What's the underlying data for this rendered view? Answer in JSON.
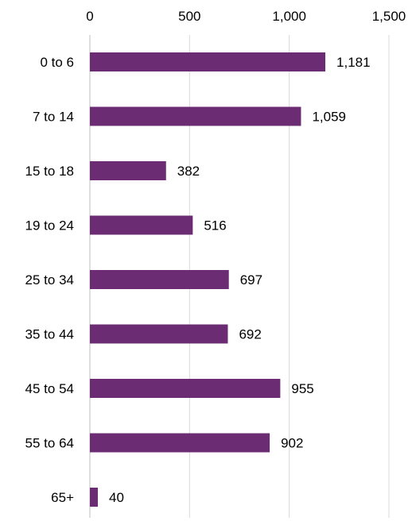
{
  "chart_data": {
    "type": "bar",
    "orientation": "horizontal",
    "categories": [
      "0 to 6",
      "7 to 14",
      "15 to 18",
      "19 to 24",
      "25 to 34",
      "35 to 44",
      "45 to 54",
      "55 to 64",
      "65+"
    ],
    "values": [
      1181,
      1059,
      382,
      516,
      697,
      692,
      955,
      902,
      40
    ],
    "value_labels": [
      "1,181",
      "1,059",
      "382",
      "516",
      "697",
      "692",
      "955",
      "902",
      "40"
    ],
    "x_ticks": [
      0,
      500,
      1000,
      1500
    ],
    "x_tick_labels": [
      "0",
      "500",
      "1,000",
      "1,500"
    ],
    "xlim": [
      0,
      1500
    ],
    "x_axis_position": "top",
    "grid": true,
    "legend": "none",
    "colors": {
      "bar": "#6b2c73",
      "grid": "#d9d9d9",
      "text": "#000000"
    }
  }
}
